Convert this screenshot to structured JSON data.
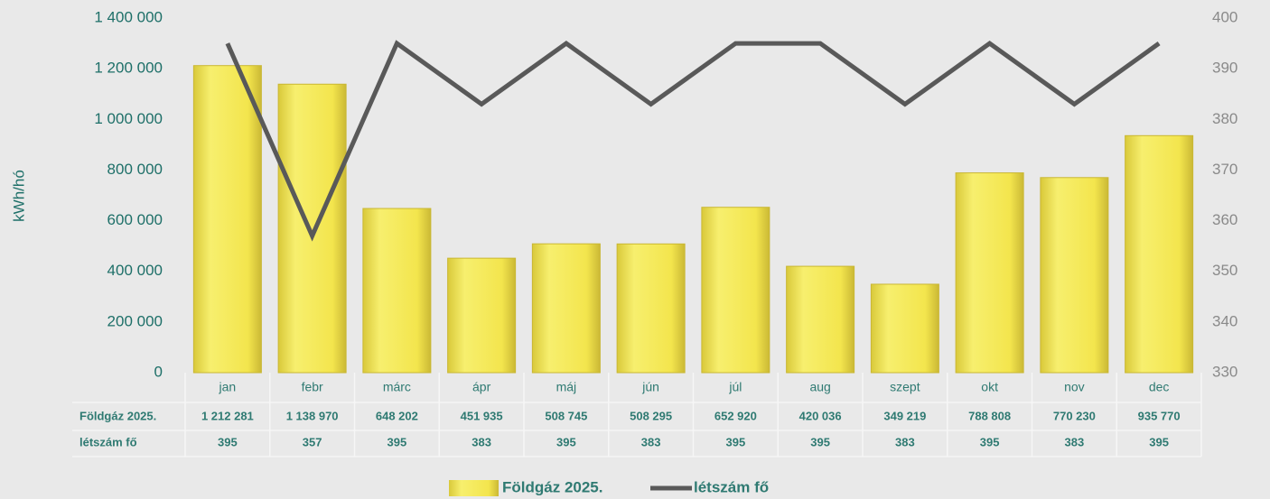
{
  "chart_data": {
    "type": "bar",
    "y_axis_label": "kWh/hó",
    "categories": [
      "jan",
      "febr",
      "márc",
      "ápr",
      "máj",
      "jún",
      "júl",
      "aug",
      "szept",
      "okt",
      "nov",
      "dec"
    ],
    "series": [
      {
        "name": "Földgáz 2025.",
        "type": "bar",
        "color": "#f3e54d",
        "values": [
          1212281,
          1138970,
          648202,
          451935,
          508745,
          508295,
          652920,
          420036,
          349219,
          788808,
          770230,
          935770
        ],
        "value_labels": [
          "1 212 281",
          "1 138 970",
          "648 202",
          "451 935",
          "508 745",
          "508 295",
          "652 920",
          "420 036",
          "349 219",
          "788 808",
          "770 230",
          "935 770"
        ]
      },
      {
        "name": "létszám fő",
        "type": "line",
        "axis": "y2",
        "color": "#595959",
        "values": [
          395,
          357,
          395,
          383,
          395,
          383,
          395,
          395,
          383,
          395,
          383,
          395
        ]
      }
    ],
    "ylim": [
      0,
      1400000
    ],
    "yticks": [
      0,
      {
        "value": 200000,
        "label": "200 000"
      },
      {
        "value": 400000,
        "label": "400 000"
      },
      {
        "value": 600000,
        "label": "600 000"
      },
      {
        "value": 800000,
        "label": "800 000"
      },
      {
        "value": 1000000,
        "label": "1 000 000"
      },
      {
        "value": 1200000,
        "label": "1 200 000"
      },
      {
        "value": 1400000,
        "label": "1 400 000"
      }
    ],
    "y2lim": [
      330,
      400
    ],
    "y2ticks": [
      330,
      340,
      350,
      360,
      370,
      380,
      390,
      400
    ],
    "grid": false,
    "legend": "bottom",
    "data_table": true
  }
}
